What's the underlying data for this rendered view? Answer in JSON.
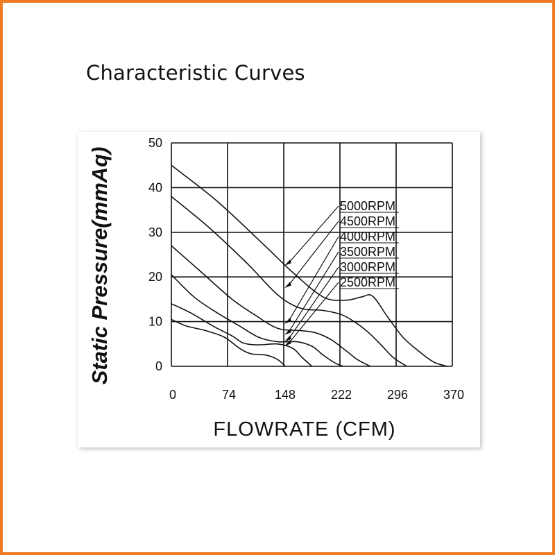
{
  "page": {
    "title": "Characteristic Curves",
    "border_color": "#f07a22"
  },
  "chart_data": {
    "type": "line",
    "title": "",
    "xlabel": "FLOWRATE (CFM)",
    "ylabel": "Static Pressure(mmAq)",
    "xlim": [
      0,
      370
    ],
    "ylim": [
      0,
      50
    ],
    "x_ticks": [
      "0",
      "74",
      "148",
      "222",
      "296",
      "370"
    ],
    "y_ticks": [
      "0",
      "10",
      "20",
      "30",
      "40",
      "50"
    ],
    "grid": true,
    "legend_position": "center-right",
    "series": [
      {
        "name": "5000RPM",
        "x": [
          0,
          60,
          120,
          160,
          200,
          230,
          250,
          265,
          285,
          305,
          325,
          345,
          363
        ],
        "y": [
          45,
          37,
          27.5,
          21,
          15.5,
          14.8,
          15.5,
          15.7,
          11,
          6.5,
          3.5,
          1,
          0
        ]
      },
      {
        "name": "4500RPM",
        "x": [
          0,
          50,
          100,
          140,
          170,
          200,
          225,
          245,
          260,
          275,
          292,
          310
        ],
        "y": [
          38,
          31,
          23,
          16,
          13,
          12.5,
          11.5,
          9.5,
          7.5,
          5,
          2,
          0
        ]
      },
      {
        "name": "4000RPM",
        "x": [
          0,
          40,
          80,
          110,
          140,
          170,
          190,
          210,
          230,
          245,
          262
        ],
        "y": [
          27,
          21,
          15,
          11.5,
          8.5,
          8,
          7.5,
          6,
          3.5,
          1.5,
          0
        ]
      },
      {
        "name": "3500RPM",
        "x": [
          0,
          30,
          60,
          90,
          115,
          140,
          165,
          185,
          200,
          215,
          226
        ],
        "y": [
          20.5,
          15.5,
          12,
          9,
          6.5,
          5.5,
          5.5,
          4.5,
          2.5,
          0.8,
          0
        ]
      },
      {
        "name": "3000RPM",
        "x": [
          0,
          25,
          55,
          80,
          95,
          115,
          140,
          160,
          172,
          185
        ],
        "y": [
          14,
          12,
          9,
          6.8,
          5.2,
          4.8,
          5,
          4,
          2,
          0
        ]
      },
      {
        "name": "2500RPM",
        "x": [
          0,
          20,
          45,
          70,
          90,
          105,
          125,
          140,
          150
        ],
        "y": [
          10.5,
          9,
          8,
          6.5,
          4,
          2.8,
          2.5,
          1.5,
          0
        ]
      }
    ],
    "pointer_target": {
      "x": 148,
      "y": 0
    }
  }
}
